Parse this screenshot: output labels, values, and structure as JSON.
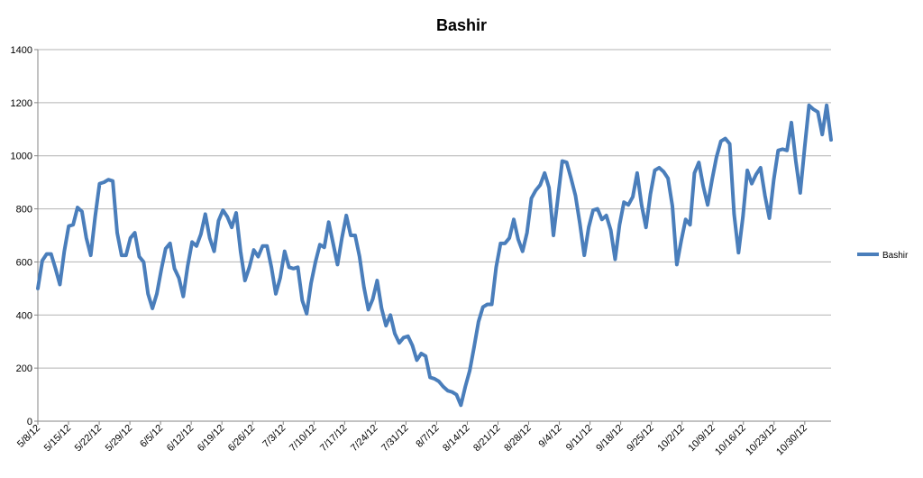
{
  "chart_data": {
    "type": "line",
    "title": "Bashir",
    "xlabel": "",
    "ylabel": "",
    "ylim": [
      0,
      1400
    ],
    "yticks": [
      0,
      200,
      400,
      600,
      800,
      1000,
      1200,
      1400
    ],
    "grid": "horizontal",
    "legend_position": "right",
    "x_start": "5/8/12",
    "x_end": "11/5/12",
    "tick_labels": [
      "5/8/12",
      "5/15/12",
      "5/22/12",
      "5/29/12",
      "6/5/12",
      "6/12/12",
      "6/19/12",
      "6/26/12",
      "7/3/12",
      "7/10/12",
      "7/17/12",
      "7/24/12",
      "7/31/12",
      "8/7/12",
      "8/14/12",
      "8/21/12",
      "8/28/12",
      "9/4/12",
      "9/11/12",
      "9/18/12",
      "9/25/12",
      "10/2/12",
      "10/9/12",
      "10/16/12",
      "10/23/12",
      "10/30/12"
    ],
    "series": [
      {
        "name": "Bashir",
        "color": "#4a7ebb",
        "values": [
          500,
          605,
          630,
          630,
          575,
          515,
          640,
          735,
          740,
          805,
          790,
          690,
          625,
          770,
          895,
          900,
          910,
          905,
          710,
          625,
          625,
          690,
          710,
          620,
          600,
          480,
          425,
          480,
          570,
          650,
          670,
          575,
          540,
          470,
          585,
          675,
          660,
          705,
          780,
          690,
          640,
          755,
          795,
          770,
          730,
          785,
          640,
          530,
          580,
          645,
          620,
          660,
          660,
          580,
          480,
          540,
          640,
          580,
          575,
          580,
          455,
          405,
          520,
          600,
          665,
          655,
          750,
          670,
          590,
          690,
          775,
          700,
          700,
          620,
          505,
          420,
          460,
          530,
          425,
          360,
          400,
          330,
          295,
          315,
          320,
          285,
          230,
          255,
          245,
          165,
          160,
          150,
          130,
          115,
          110,
          100,
          60,
          130,
          190,
          280,
          375,
          430,
          440,
          440,
          580,
          670,
          670,
          690,
          760,
          685,
          640,
          710,
          840,
          870,
          890,
          935,
          880,
          700,
          840,
          980,
          975,
          915,
          850,
          745,
          625,
          730,
          795,
          800,
          760,
          775,
          720,
          610,
          740,
          825,
          815,
          845,
          935,
          815,
          730,
          855,
          945,
          955,
          940,
          915,
          810,
          590,
          680,
          760,
          740,
          935,
          975,
          885,
          815,
          910,
          995,
          1055,
          1065,
          1045,
          780,
          635,
          770,
          945,
          895,
          930,
          955,
          850,
          765,
          910,
          1020,
          1025,
          1020,
          1125,
          980,
          860,
          1030,
          1190,
          1175,
          1165,
          1080,
          1190,
          1060
        ]
      }
    ]
  }
}
